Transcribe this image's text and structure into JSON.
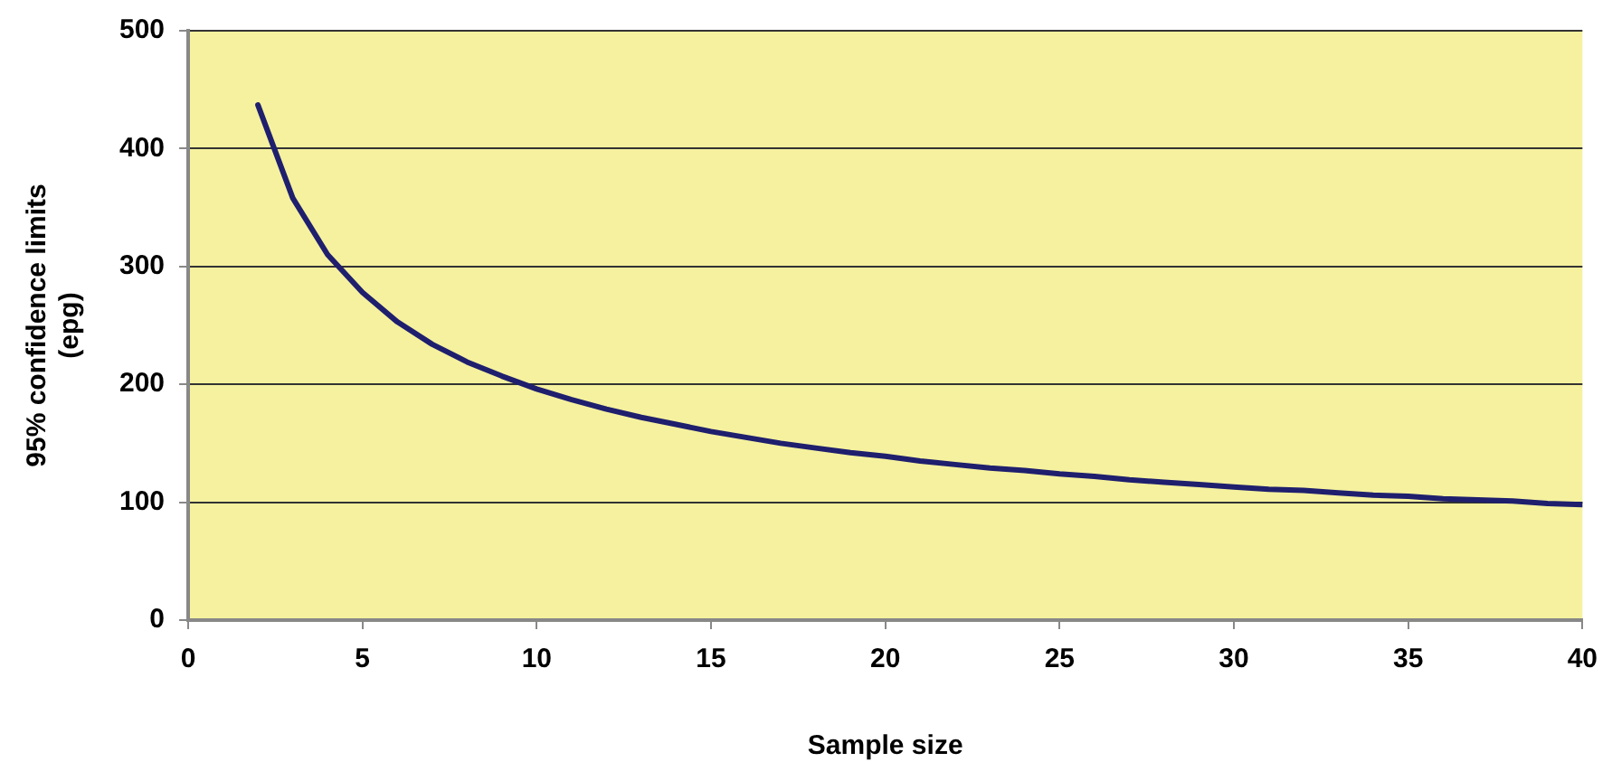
{
  "chart_data": {
    "type": "line",
    "xlabel": "Sample size",
    "ylabel": "95% confidence limits\n(epg)",
    "x": [
      2,
      3,
      4,
      5,
      6,
      7,
      8,
      9,
      10,
      11,
      12,
      13,
      14,
      15,
      16,
      17,
      18,
      19,
      20,
      21,
      22,
      23,
      24,
      25,
      26,
      27,
      28,
      29,
      30,
      31,
      32,
      33,
      34,
      35,
      36,
      37,
      38,
      39,
      40
    ],
    "series": [
      {
        "color": "#1f1f6e",
        "values": [
          437,
          358,
          310,
          278,
          253,
          234,
          219,
          207,
          196,
          187,
          179,
          172,
          166,
          160,
          155,
          150,
          146,
          142,
          139,
          135,
          132,
          129,
          127,
          124,
          122,
          119,
          117,
          115,
          113,
          111,
          110,
          108,
          106,
          105,
          103,
          102,
          101,
          99,
          98
        ]
      }
    ],
    "xlim": [
      0,
      40
    ],
    "xticks": [
      0,
      5,
      10,
      15,
      20,
      25,
      30,
      35,
      40
    ],
    "ylim": [
      0,
      500
    ],
    "yticks": [
      0,
      100,
      200,
      300,
      400,
      500
    ],
    "grid": "y",
    "legend": false,
    "marker": "none",
    "line_style": "solid"
  }
}
